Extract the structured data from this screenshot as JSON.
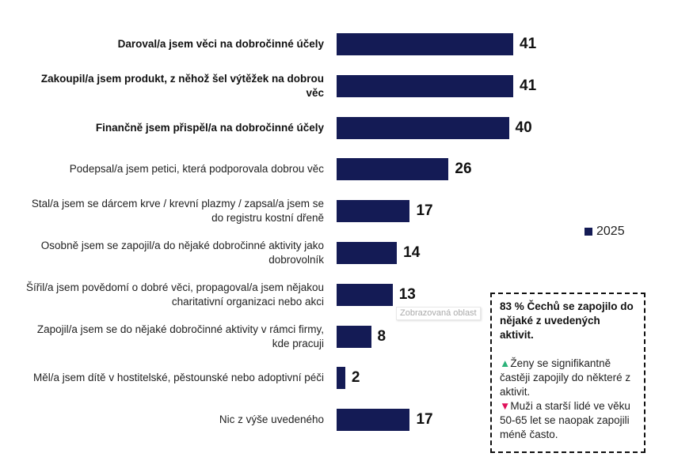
{
  "chart_data": {
    "type": "bar",
    "orientation": "horizontal",
    "xlim": [
      0,
      45
    ],
    "grid": false,
    "legend_position": "right",
    "series": [
      {
        "name": "2025",
        "color": "#141b55"
      }
    ],
    "categories": [
      "Daroval/a jsem věci na dobročinné účely",
      "Zakoupil/a jsem produkt, z něhož šel výtěžek na dobrou věc",
      "Finančně jsem přispěl/a na dobročinné účely",
      "Podepsal/a jsem petici, která podporovala dobrou věc",
      "Stal/a jsem se dárcem krve / krevní plazmy / zapsal/a jsem se do registru kostní dřeně",
      "Osobně jsem se zapojil/a do nějaké dobročinné aktivity jako dobrovolník",
      "Šířil/a jsem povědomí o dobré věci, propagoval/a jsem nějakou charitativní organizaci nebo akci",
      "Zapojil/a jsem se do nějaké dobročinné aktivity v rámci firmy, kde pracuji",
      "Měl/a jsem dítě v hostitelské, pěstounské nebo adoptivní péči",
      "Nic z výše uvedeného"
    ],
    "values": [
      41,
      41,
      40,
      26,
      17,
      14,
      13,
      8,
      2,
      17
    ],
    "bold_categories": [
      true,
      true,
      true,
      false,
      false,
      false,
      false,
      false,
      false,
      false
    ]
  },
  "legend": {
    "label": "2025"
  },
  "tooltip": "Zobrazovaná oblast",
  "note": {
    "headline": "83 % Čechů se zapojilo do nějaké z uvedených aktivit.",
    "up_icon": "triangle-up",
    "up_color": "#2db37a",
    "up_text": "Ženy se signifikantně častěji zapojily do některé z aktivit.",
    "down_icon": "triangle-down",
    "down_color": "#e0105a",
    "down_text": "Muži a starší lidé ve věku 50-65 let se naopak zapojili méně často."
  }
}
